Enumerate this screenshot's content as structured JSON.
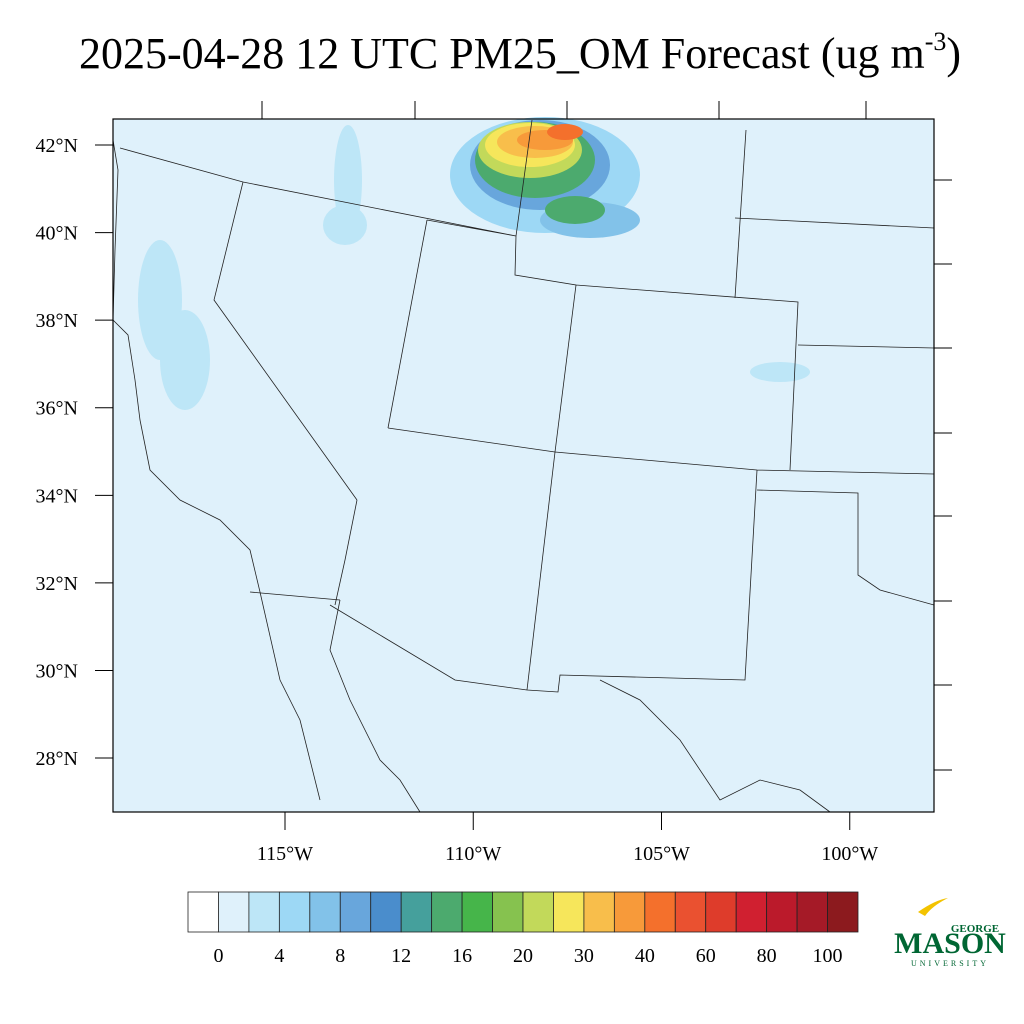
{
  "header": {
    "title": "2025-04-28 12 UTC PM25_OM Forecast (ug m",
    "title_superscript": "-3",
    "title_close": ")"
  },
  "map": {
    "lat_ticks": [
      {
        "value": 42,
        "label": "42°N"
      },
      {
        "value": 40,
        "label": "40°N"
      },
      {
        "value": 38,
        "label": "38°N"
      },
      {
        "value": 36,
        "label": "36°N"
      },
      {
        "value": 34,
        "label": "34°N"
      },
      {
        "value": 32,
        "label": "32°N"
      },
      {
        "value": 30,
        "label": "30°N"
      },
      {
        "value": 28,
        "label": "28°N"
      }
    ],
    "lon_ticks": [
      {
        "value": -115,
        "label": "115°W"
      },
      {
        "value": -110,
        "label": "110°W"
      },
      {
        "value": -105,
        "label": "105°W"
      },
      {
        "value": -100,
        "label": "100°W"
      }
    ]
  },
  "colorbar": {
    "colors": [
      "#ffffff",
      "#dff1fb",
      "#bde6f7",
      "#9dd8f5",
      "#82c2e9",
      "#68a6dc",
      "#4a8dcc",
      "#45a09c",
      "#4caa6e",
      "#46b54a",
      "#86c24f",
      "#c2d95a",
      "#f6e65b",
      "#f8be4b",
      "#f79a3a",
      "#f4702c",
      "#ea5130",
      "#de3c2b",
      "#d02030",
      "#bb1a2b",
      "#a51a27",
      "#8c1a1e"
    ],
    "labels": [
      0,
      4,
      8,
      12,
      16,
      20,
      30,
      40,
      60,
      80,
      100
    ]
  },
  "logo": {
    "top": "GEORGE",
    "main": "MASON",
    "bottom": "UNIVERSITY"
  }
}
